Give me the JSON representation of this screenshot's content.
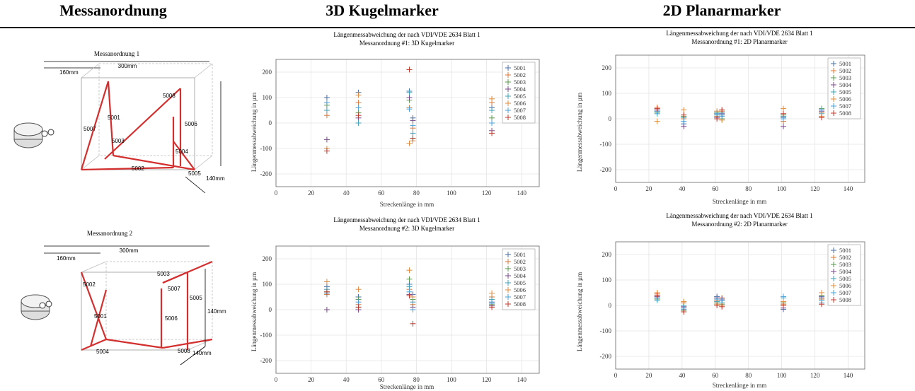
{
  "headers": {
    "col1": "Messanordnung",
    "col2": "3D Kugelmarker",
    "col3": "2D Planarmarker"
  },
  "diagrams": [
    {
      "title": "Messanordnung 1",
      "dim_160": "160mm",
      "dim_300": "300mm",
      "dim_140_side": "140mm",
      "labels": [
        "5001",
        "5002",
        "5003",
        "5004",
        "5005",
        "5006",
        "5007",
        "5008"
      ]
    },
    {
      "title": "Messanordnung 2",
      "dim_160": "160mm",
      "dim_300": "300mm",
      "dim_140_side": "140mm",
      "dim_140_depth": "140mm",
      "labels": [
        "5001",
        "5002",
        "5003",
        "5004",
        "5005",
        "5006",
        "5007",
        "5008"
      ]
    }
  ],
  "colors": {
    "5001": "#4a6fa5",
    "5002": "#d9793a",
    "5003": "#5a9a4e",
    "5004": "#7a4a8a",
    "5005": "#3fa0b8",
    "5006": "#e08b3c",
    "5007": "#4aa0d8",
    "5008": "#c0392b"
  },
  "chart_data": [
    {
      "type": "scatter",
      "title": "Längenmessabweichung der nach VDI/VDE 2634 Blatt 1",
      "subtitle": "Messanordnung #1: 3D Kugelmarker",
      "xlabel": "Streckenlänge in mm",
      "ylabel": "Längenmessabweichung in µm",
      "xlim": [
        0,
        150
      ],
      "ylim": [
        -250,
        250
      ],
      "xticks": [
        0,
        20,
        40,
        60,
        80,
        100,
        120,
        140
      ],
      "yticks": [
        -200,
        -100,
        0,
        100,
        200
      ],
      "legend_position": "top-right",
      "series": [
        {
          "name": "5001",
          "x": [
            29,
            47,
            76,
            78,
            123
          ],
          "y": [
            100,
            120,
            125,
            20,
            60
          ]
        },
        {
          "name": "5002",
          "x": [
            29,
            47,
            76,
            78,
            123
          ],
          "y": [
            30,
            80,
            60,
            -20,
            80
          ]
        },
        {
          "name": "5003",
          "x": [
            29,
            47,
            76,
            78,
            123
          ],
          "y": [
            70,
            40,
            90,
            -60,
            20
          ]
        },
        {
          "name": "5004",
          "x": [
            29,
            47,
            76,
            78,
            123
          ],
          "y": [
            -65,
            20,
            100,
            10,
            -30
          ]
        },
        {
          "name": "5005",
          "x": [
            29,
            47,
            76,
            78,
            123
          ],
          "y": [
            50,
            0,
            120,
            -40,
            50
          ]
        },
        {
          "name": "5006",
          "x": [
            29,
            47,
            76,
            78,
            123
          ],
          "y": [
            -100,
            110,
            -80,
            -70,
            95
          ]
        },
        {
          "name": "5007",
          "x": [
            29,
            47,
            76,
            78,
            123
          ],
          "y": [
            80,
            60,
            55,
            -10,
            0
          ]
        },
        {
          "name": "5008",
          "x": [
            29,
            47,
            76,
            78,
            123
          ],
          "y": [
            -110,
            30,
            210,
            -60,
            -40
          ]
        }
      ]
    },
    {
      "type": "scatter",
      "title": "Längenmessabweichung der nach VDI/VDE 2634 Blatt 1",
      "subtitle": "Messanordnung #1: 2D Planarmarker",
      "xlabel": "Streckenlänge in mm",
      "ylabel": "Längenmessabweichung in µm",
      "xlim": [
        0,
        150
      ],
      "ylim": [
        -250,
        250
      ],
      "xticks": [
        0,
        20,
        40,
        60,
        80,
        100,
        120,
        140
      ],
      "yticks": [
        -200,
        -100,
        0,
        100,
        200
      ],
      "legend_position": "top-right",
      "series": [
        {
          "name": "5001",
          "x": [
            25,
            41,
            61,
            64,
            101,
            124
          ],
          "y": [
            30,
            -20,
            20,
            15,
            5,
            35
          ]
        },
        {
          "name": "5002",
          "x": [
            25,
            41,
            61,
            64,
            101,
            124
          ],
          "y": [
            45,
            0,
            10,
            30,
            -10,
            25
          ]
        },
        {
          "name": "5003",
          "x": [
            25,
            41,
            61,
            64,
            101,
            124
          ],
          "y": [
            25,
            10,
            25,
            0,
            15,
            40
          ]
        },
        {
          "name": "5004",
          "x": [
            25,
            41,
            61,
            64,
            101,
            124
          ],
          "y": [
            35,
            -30,
            5,
            20,
            -30,
            30
          ]
        },
        {
          "name": "5005",
          "x": [
            25,
            41,
            61,
            64,
            101,
            124
          ],
          "y": [
            20,
            5,
            15,
            25,
            10,
            20
          ]
        },
        {
          "name": "5006",
          "x": [
            25,
            41,
            61,
            64,
            101,
            124
          ],
          "y": [
            -10,
            35,
            30,
            -5,
            40,
            10
          ]
        },
        {
          "name": "5007",
          "x": [
            25,
            41,
            61,
            64,
            101,
            124
          ],
          "y": [
            30,
            -10,
            20,
            10,
            0,
            35
          ]
        },
        {
          "name": "5008",
          "x": [
            25,
            41,
            61,
            64,
            101,
            124
          ],
          "y": [
            40,
            15,
            0,
            35,
            20,
            5
          ]
        }
      ]
    },
    {
      "type": "scatter",
      "title": "Längenmessabweichung der nach VDI/VDE 2634 Blatt 1",
      "subtitle": "Messanordnung #2: 3D Kugelmarker",
      "xlabel": "Streckenlänge in mm",
      "ylabel": "Längenmessabweichung in µm",
      "xlim": [
        0,
        150
      ],
      "ylim": [
        -250,
        250
      ],
      "xticks": [
        0,
        20,
        40,
        60,
        80,
        100,
        120,
        140
      ],
      "yticks": [
        -200,
        -100,
        0,
        100,
        200
      ],
      "legend_position": "top-right",
      "series": [
        {
          "name": "5001",
          "x": [
            29,
            47,
            76,
            78,
            123
          ],
          "y": [
            90,
            50,
            100,
            60,
            30
          ]
        },
        {
          "name": "5002",
          "x": [
            29,
            47,
            76,
            78,
            123
          ],
          "y": [
            60,
            20,
            80,
            20,
            50
          ]
        },
        {
          "name": "5003",
          "x": [
            29,
            47,
            76,
            78,
            123
          ],
          "y": [
            70,
            40,
            120,
            40,
            20
          ]
        },
        {
          "name": "5004",
          "x": [
            29,
            47,
            76,
            78,
            123
          ],
          "y": [
            0,
            0,
            60,
            10,
            15
          ]
        },
        {
          "name": "5005",
          "x": [
            29,
            47,
            76,
            78,
            123
          ],
          "y": [
            80,
            10,
            90,
            30,
            40
          ]
        },
        {
          "name": "5006",
          "x": [
            29,
            47,
            76,
            78,
            123
          ],
          "y": [
            110,
            80,
            155,
            50,
            65
          ]
        },
        {
          "name": "5007",
          "x": [
            29,
            47,
            76,
            78,
            123
          ],
          "y": [
            65,
            30,
            70,
            0,
            25
          ]
        },
        {
          "name": "5008",
          "x": [
            29,
            47,
            76,
            78,
            123
          ],
          "y": [
            70,
            10,
            55,
            -55,
            10
          ]
        }
      ]
    },
    {
      "type": "scatter",
      "title": "Längenmessabweichung der nach VDI/VDE 2634 Blatt 1",
      "subtitle": "Messanordnung #2: 2D Planarmarker",
      "xlabel": "Streckenlänge in mm",
      "ylabel": "Längenmessabweichung in µm",
      "xlim": [
        0,
        150
      ],
      "ylim": [
        -250,
        250
      ],
      "xticks": [
        0,
        20,
        40,
        60,
        80,
        100,
        120,
        140
      ],
      "yticks": [
        -200,
        -100,
        0,
        100,
        200
      ],
      "legend_position": "top-right",
      "series": [
        {
          "name": "5001",
          "x": [
            25,
            41,
            61,
            64,
            101,
            124
          ],
          "y": [
            30,
            -10,
            35,
            20,
            -15,
            35
          ]
        },
        {
          "name": "5002",
          "x": [
            25,
            41,
            61,
            64,
            101,
            124
          ],
          "y": [
            45,
            10,
            20,
            30,
            5,
            25
          ]
        },
        {
          "name": "5003",
          "x": [
            25,
            41,
            61,
            64,
            101,
            124
          ],
          "y": [
            25,
            -20,
            10,
            5,
            10,
            40
          ]
        },
        {
          "name": "5004",
          "x": [
            25,
            41,
            61,
            64,
            101,
            124
          ],
          "y": [
            35,
            -5,
            30,
            25,
            -10,
            30
          ]
        },
        {
          "name": "5005",
          "x": [
            25,
            41,
            61,
            64,
            101,
            124
          ],
          "y": [
            20,
            0,
            15,
            10,
            30,
            20
          ]
        },
        {
          "name": "5006",
          "x": [
            25,
            41,
            61,
            64,
            101,
            124
          ],
          "y": [
            50,
            15,
            5,
            0,
            15,
            50
          ]
        },
        {
          "name": "5007",
          "x": [
            25,
            41,
            61,
            64,
            101,
            124
          ],
          "y": [
            30,
            -15,
            25,
            20,
            35,
            10
          ]
        },
        {
          "name": "5008",
          "x": [
            25,
            41,
            61,
            64,
            101,
            124
          ],
          "y": [
            40,
            -25,
            0,
            -5,
            0,
            5
          ]
        }
      ]
    }
  ]
}
